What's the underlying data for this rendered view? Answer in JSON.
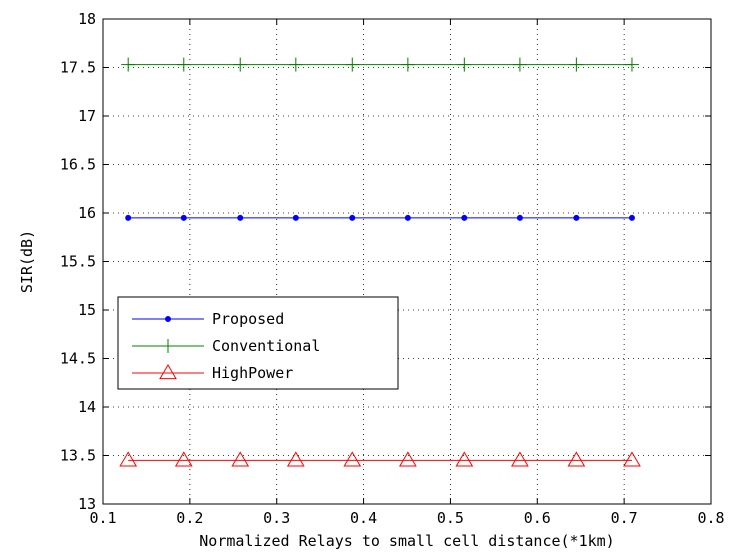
{
  "chart_data": {
    "type": "line",
    "title": "",
    "xlabel": "Normalized Relays to small cell distance(*1km)",
    "ylabel": "SIR(dB)",
    "xlim": [
      0.1,
      0.8
    ],
    "ylim": [
      13,
      18
    ],
    "x_ticks": [
      0.1,
      0.2,
      0.3,
      0.4,
      0.5,
      0.6,
      0.7,
      0.8
    ],
    "x_tick_labels": [
      "0.1",
      "0.2",
      "0.3",
      "0.4",
      "0.5",
      "0.6",
      "0.7",
      "0.8"
    ],
    "y_ticks": [
      13,
      13.5,
      14,
      14.5,
      15,
      15.5,
      16,
      16.5,
      17,
      17.5,
      18
    ],
    "y_tick_labels": [
      "13",
      "13.5",
      "14",
      "14.5",
      "15",
      "15.5",
      "16",
      "16.5",
      "17",
      "17.5",
      "18"
    ],
    "grid": true,
    "legend_position": "middle-left",
    "x": [
      0.129,
      0.193,
      0.258,
      0.322,
      0.387,
      0.451,
      0.516,
      0.58,
      0.645,
      0.709
    ],
    "series": [
      {
        "name": "Proposed",
        "color": "#0000ff",
        "marker": "dot",
        "values": [
          15.95,
          15.95,
          15.95,
          15.95,
          15.95,
          15.95,
          15.95,
          15.95,
          15.95,
          15.95
        ]
      },
      {
        "name": "Conventional",
        "color": "#008000",
        "marker": "plus",
        "values": [
          17.53,
          17.53,
          17.53,
          17.53,
          17.53,
          17.53,
          17.53,
          17.53,
          17.53,
          17.53
        ]
      },
      {
        "name": "HighPower",
        "color": "#ff0000",
        "marker": "triangle",
        "values": [
          13.45,
          13.45,
          13.45,
          13.45,
          13.45,
          13.45,
          13.45,
          13.45,
          13.45,
          13.45
        ]
      }
    ]
  }
}
